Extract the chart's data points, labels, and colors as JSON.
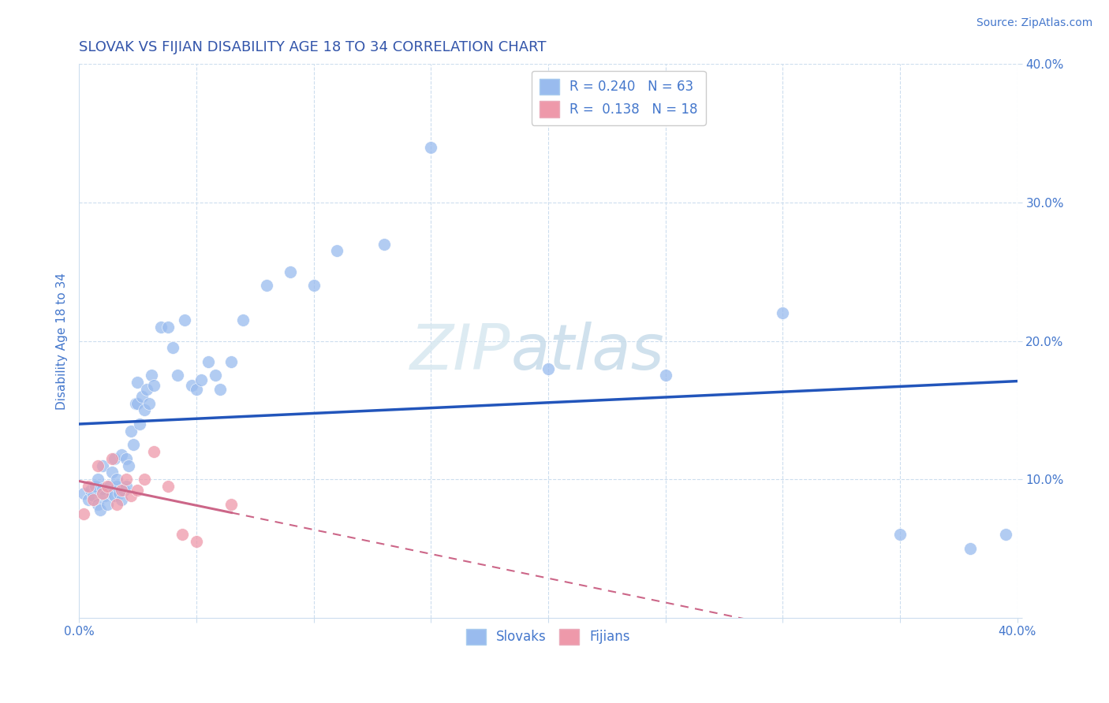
{
  "title": "SLOVAK VS FIJIAN DISABILITY AGE 18 TO 34 CORRELATION CHART",
  "source_text": "Source: ZipAtlas.com",
  "ylabel": "Disability Age 18 to 34",
  "xlim": [
    0.0,
    0.4
  ],
  "ylim": [
    0.0,
    0.4
  ],
  "title_color": "#3355aa",
  "axis_color": "#4477cc",
  "grid_color": "#ccddee",
  "watermark_text": "ZIPAtlas",
  "slovak_color": "#99bbee",
  "fijian_color": "#ee99aa",
  "slovak_line_color": "#2255bb",
  "fijian_line_color": "#cc6688",
  "r_slovak": 0.24,
  "n_slovak": 63,
  "r_fijian": 0.138,
  "n_fijian": 18,
  "slovak_x": [
    0.002,
    0.004,
    0.005,
    0.006,
    0.007,
    0.008,
    0.008,
    0.009,
    0.01,
    0.01,
    0.011,
    0.012,
    0.013,
    0.014,
    0.014,
    0.015,
    0.015,
    0.016,
    0.016,
    0.017,
    0.018,
    0.018,
    0.019,
    0.02,
    0.02,
    0.021,
    0.022,
    0.023,
    0.024,
    0.025,
    0.025,
    0.026,
    0.027,
    0.028,
    0.029,
    0.03,
    0.031,
    0.032,
    0.035,
    0.038,
    0.04,
    0.042,
    0.045,
    0.048,
    0.05,
    0.052,
    0.055,
    0.058,
    0.06,
    0.065,
    0.07,
    0.08,
    0.09,
    0.1,
    0.11,
    0.13,
    0.15,
    0.2,
    0.25,
    0.3,
    0.35,
    0.38,
    0.395
  ],
  "slovak_y": [
    0.09,
    0.085,
    0.092,
    0.088,
    0.095,
    0.1,
    0.082,
    0.078,
    0.093,
    0.11,
    0.088,
    0.082,
    0.095,
    0.089,
    0.105,
    0.115,
    0.088,
    0.095,
    0.1,
    0.09,
    0.118,
    0.085,
    0.092,
    0.115,
    0.095,
    0.11,
    0.135,
    0.125,
    0.155,
    0.155,
    0.17,
    0.14,
    0.16,
    0.15,
    0.165,
    0.155,
    0.175,
    0.168,
    0.21,
    0.21,
    0.195,
    0.175,
    0.215,
    0.168,
    0.165,
    0.172,
    0.185,
    0.175,
    0.165,
    0.185,
    0.215,
    0.24,
    0.25,
    0.24,
    0.265,
    0.27,
    0.34,
    0.18,
    0.175,
    0.22,
    0.06,
    0.05,
    0.06
  ],
  "fijian_x": [
    0.002,
    0.004,
    0.006,
    0.008,
    0.01,
    0.012,
    0.014,
    0.016,
    0.018,
    0.02,
    0.022,
    0.025,
    0.028,
    0.032,
    0.038,
    0.044,
    0.05,
    0.065
  ],
  "fijian_y": [
    0.075,
    0.095,
    0.085,
    0.11,
    0.09,
    0.095,
    0.115,
    0.082,
    0.092,
    0.1,
    0.088,
    0.092,
    0.1,
    0.12,
    0.095,
    0.06,
    0.055,
    0.082
  ]
}
